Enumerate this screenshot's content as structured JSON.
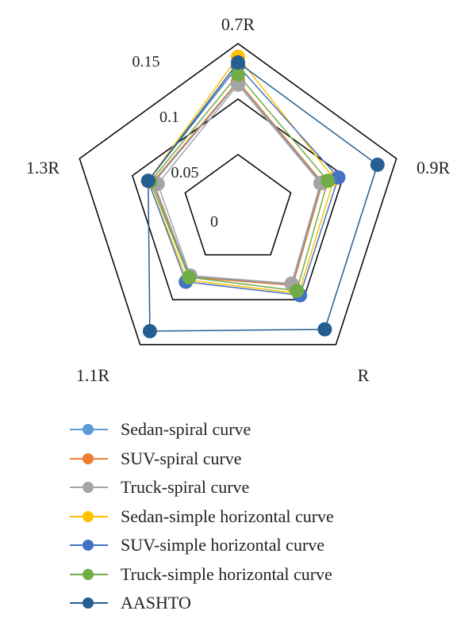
{
  "chart_data": {
    "type": "radar",
    "categories": [
      "0.7R",
      "0.9R",
      "R",
      "1.1R",
      "1.3R"
    ],
    "rticks": [
      0,
      0.05,
      0.1,
      0.15
    ],
    "rlim": [
      0,
      0.15
    ],
    "grid": true,
    "legend_position": "bottom",
    "series": [
      {
        "name": "Sedan-spiral curve",
        "color": "#5b9bd5",
        "values": [
          0.115,
          0.079,
          0.083,
          0.074,
          0.08
        ]
      },
      {
        "name": "SUV-spiral curve",
        "color": "#ed7d31",
        "values": [
          0.116,
          0.08,
          0.084,
          0.075,
          0.081
        ]
      },
      {
        "name": "Truck-spiral curve",
        "color": "#a5a5a5",
        "values": [
          0.113,
          0.078,
          0.082,
          0.073,
          0.076
        ]
      },
      {
        "name": "Sedan-simple horizontal curve",
        "color": "#ffc000",
        "values": [
          0.138,
          0.091,
          0.093,
          0.078,
          0.085
        ]
      },
      {
        "name": "SUV-simple horizontal curve",
        "color": "#4472c4",
        "values": [
          0.13,
          0.095,
          0.095,
          0.08,
          0.085
        ]
      },
      {
        "name": "Truck-simple horizontal curve",
        "color": "#70ad47",
        "values": [
          0.122,
          0.085,
          0.09,
          0.075,
          0.083
        ]
      },
      {
        "name": "AASHTO",
        "color": "#255e91",
        "values": [
          0.133,
          0.132,
          0.133,
          0.135,
          0.085
        ]
      }
    ]
  }
}
